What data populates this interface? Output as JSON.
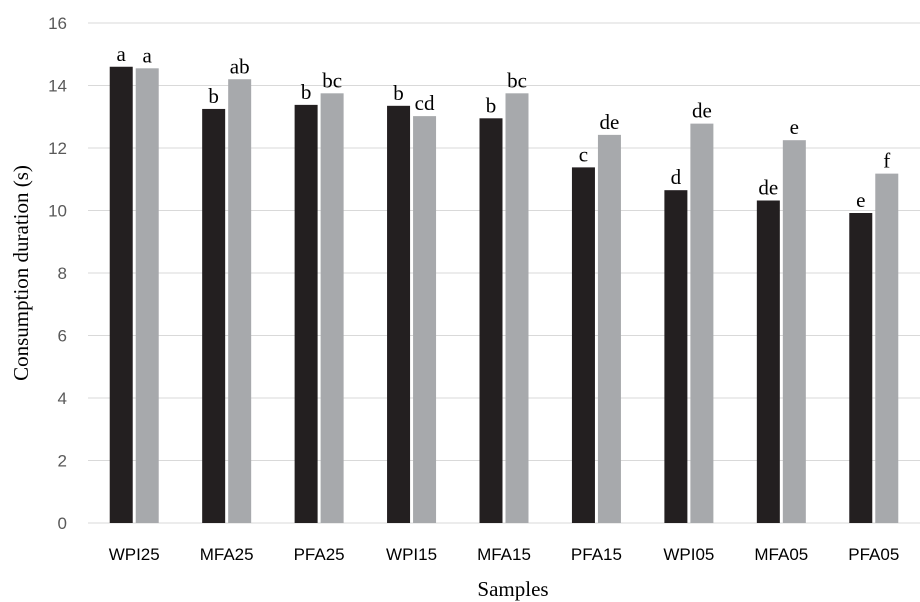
{
  "chart_data": {
    "type": "bar",
    "xlabel": "Samples",
    "ylabel": "Consumption duration (s)",
    "ylim": [
      0,
      16
    ],
    "yticks": [
      0,
      2,
      4,
      6,
      8,
      10,
      12,
      14,
      16
    ],
    "grid": "horizontal",
    "legend": "none",
    "categories": [
      "WPI25",
      "MFA25",
      "PFA25",
      "WPI15",
      "MFA15",
      "PFA15",
      "WPI05",
      "MFA05",
      "PFA05"
    ],
    "series": [
      {
        "color": "#231f20",
        "values": [
          14.6,
          13.25,
          13.38,
          13.35,
          12.95,
          11.38,
          10.65,
          10.32,
          9.92
        ],
        "labels": [
          "a",
          "b",
          "b",
          "b",
          "b",
          "c",
          "d",
          "de",
          "e"
        ]
      },
      {
        "color": "#a7a9ac",
        "values": [
          14.55,
          14.2,
          13.75,
          13.02,
          13.75,
          12.42,
          12.78,
          12.25,
          11.18
        ],
        "labels": [
          "a",
          "ab",
          "bc",
          "cd",
          "bc",
          "de",
          "de",
          "e",
          "f"
        ]
      }
    ]
  }
}
